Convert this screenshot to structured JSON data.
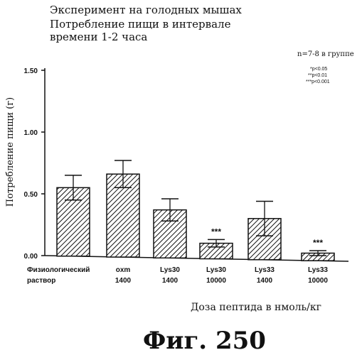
{
  "header": {
    "line1": "Эксперимент на голодных мышах",
    "line2": "Потребление пищи в интервале",
    "line3": "времени 1-2 часа"
  },
  "stats_note": {
    "n_label": "n=7-8 в группе",
    "sig1": "*p<0.05",
    "sig2": "**p<0.01",
    "sig3": "***p<0.001"
  },
  "figure_label": "Фиг. 250",
  "chart_data": {
    "type": "bar",
    "ylabel": "Потребление пищи (г)",
    "xlabel": "Доза пептида в нмоль/кг",
    "ylim": [
      0,
      1.5
    ],
    "yticks": [
      0.0,
      0.5,
      1.0,
      1.5
    ],
    "ytick_labels": [
      "0.00",
      "0.50",
      "1.00",
      "1.50"
    ],
    "categories": [
      {
        "line1": "Физиологический",
        "line2": "раствор"
      },
      {
        "line1": "oxm",
        "line2": "1400"
      },
      {
        "line1": "Lys30",
        "line2": "1400"
      },
      {
        "line1": "Lys30",
        "line2": "10000"
      },
      {
        "line1": "Lys33",
        "line2": "1400"
      },
      {
        "line1": "Lys33",
        "line2": "10000"
      }
    ],
    "values": [
      0.55,
      0.66,
      0.37,
      0.1,
      0.3,
      0.02
    ],
    "errors": [
      0.1,
      0.11,
      0.09,
      0.03,
      0.14,
      0.02
    ],
    "significance": [
      "",
      "",
      "",
      "***",
      "",
      "***"
    ],
    "bar_pattern": "diagonal-hatch",
    "grid": false
  }
}
